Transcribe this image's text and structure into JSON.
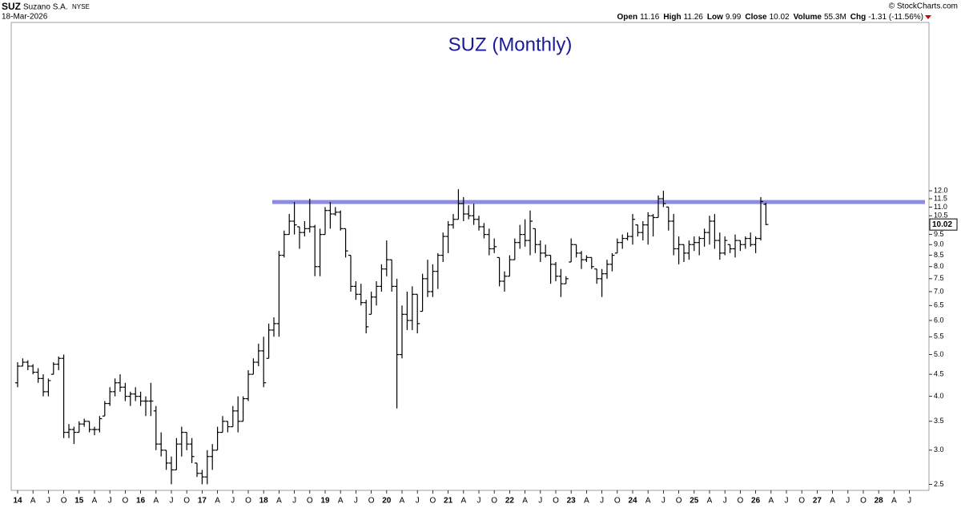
{
  "header": {
    "symbol": "SUZ",
    "name": "Suzano S.A.",
    "exchange": "NYSE",
    "date": "18-Mar-2026",
    "copyright": "© StockCharts.com",
    "quote": [
      {
        "label": "Open",
        "value": "11.16"
      },
      {
        "label": "High",
        "value": "11.26"
      },
      {
        "label": "Low",
        "value": "9.99"
      },
      {
        "label": "Close",
        "value": "10.02"
      },
      {
        "label": "Volume",
        "value": "55.3M"
      },
      {
        "label": "Chg",
        "value": "-1.31 (-11.56%)"
      }
    ]
  },
  "chart_data": {
    "type": "ohlc",
    "title": "SUZ (Monthly)",
    "log_scale": true,
    "color": "#000000",
    "resistance_level": 11.3,
    "resistance_color": "#8c8ce0",
    "ylim": [
      2.42,
      29.5
    ],
    "yticks": [
      2.5,
      {
        "value": 3,
        "label": "3.0"
      },
      3.5,
      {
        "value": 4,
        "label": "4.0"
      },
      4.5,
      {
        "value": 5,
        "label": "5.0"
      },
      5.5,
      {
        "value": 6,
        "label": "6.0"
      },
      6.5,
      {
        "value": 7,
        "label": "7.0"
      },
      7.5,
      {
        "value": 8,
        "label": "8.0"
      },
      8.5,
      {
        "value": 9,
        "label": "9.0"
      },
      9.5,
      10.5,
      {
        "value": 11,
        "label": "11.0"
      },
      11.5,
      {
        "value": 12,
        "label": "12.0"
      }
    ],
    "xtick_labels": [
      "14",
      "A",
      "J",
      "O",
      "15",
      "A",
      "J",
      "O",
      "16",
      "A",
      "J",
      "O",
      "17",
      "A",
      "J",
      "O",
      "18",
      "A",
      "J",
      "O",
      "19",
      "A",
      "J",
      "O",
      "20",
      "A",
      "J",
      "O",
      "21",
      "A",
      "J",
      "O",
      "22",
      "A",
      "J",
      "O",
      "23",
      "A",
      "J",
      "O",
      "24",
      "A",
      "J",
      "O",
      "25",
      "A",
      "J",
      "O",
      "26",
      "A",
      "J",
      "O",
      "27",
      "A",
      "J",
      "O",
      "28",
      "A",
      "J"
    ],
    "open": [
      4.3,
      4.7,
      4.8,
      4.7,
      4.55,
      4.4,
      4.1,
      4.5,
      4.75,
      4.9,
      3.3,
      3.35,
      3.3,
      3.45,
      3.5,
      3.35,
      3.35,
      3.6,
      3.85,
      4.1,
      4.3,
      4.2,
      4.0,
      4.05,
      4.0,
      3.9,
      3.9,
      3.7,
      3.1,
      3.0,
      2.8,
      2.7,
      3.1,
      3.3,
      3.1,
      2.8,
      2.65,
      2.6,
      2.9,
      3.0,
      3.3,
      3.5,
      3.4,
      3.7,
      3.5,
      3.95,
      4.5,
      4.8,
      5.1,
      4.9,
      5.7,
      5.9,
      8.5,
      9.5,
      10.2,
      9.9,
      9.6,
      9.8,
      9.9,
      8.0,
      9.5,
      10.8,
      10.6,
      10.7,
      9.8,
      8.5,
      7.2,
      6.9,
      6.6,
      6.2,
      6.8,
      7.2,
      7.9,
      8.3,
      7.2,
      5.0,
      6.2,
      6.0,
      6.9,
      6.3,
      7.5,
      7.0,
      7.8,
      8.5,
      9.4,
      10.0,
      10.3,
      11.2,
      10.6,
      10.5,
      10.3,
      9.9,
      9.5,
      8.8,
      8.4,
      7.4,
      7.6,
      8.3,
      9.1,
      9.5,
      9.2,
      9.8,
      9.0,
      8.6,
      8.5,
      8.1,
      7.6,
      7.3,
      8.2,
      9.0,
      8.6,
      8.3,
      8.4,
      7.9,
      7.5,
      7.7,
      8.1,
      8.6,
      9.1,
      9.3,
      9.4,
      10.0,
      9.6,
      10.0,
      10.5,
      10.4,
      11.5,
      11.0,
      10.2,
      8.8,
      9.0,
      8.6,
      9.0,
      9.1,
      9.3,
      9.6,
      10.2,
      9.2,
      8.6,
      9.0,
      8.8,
      9.2,
      9.0,
      9.3,
      9.0,
      9.3,
      11.16
    ],
    "high": [
      4.8,
      4.9,
      4.85,
      4.75,
      4.65,
      4.5,
      4.4,
      4.8,
      4.95,
      5.0,
      3.45,
      3.4,
      3.5,
      3.55,
      3.5,
      3.4,
      3.6,
      3.9,
      4.2,
      4.4,
      4.5,
      4.3,
      4.1,
      4.2,
      4.1,
      4.0,
      4.3,
      3.8,
      3.3,
      3.0,
      2.9,
      3.2,
      3.4,
      3.3,
      3.2,
      2.8,
      2.7,
      3.0,
      3.1,
      3.4,
      3.6,
      3.5,
      3.8,
      4.0,
      4.0,
      4.6,
      4.9,
      5.3,
      5.5,
      5.9,
      6.1,
      8.7,
      9.7,
      10.6,
      11.3,
      9.9,
      10.2,
      11.5,
      10.0,
      9.8,
      11.0,
      11.3,
      11.0,
      10.8,
      9.8,
      8.5,
      7.4,
      7.3,
      6.7,
      7.0,
      7.4,
      8.1,
      9.2,
      8.3,
      7.5,
      6.5,
      7.0,
      7.2,
      6.9,
      7.7,
      8.3,
      8.1,
      8.6,
      9.6,
      10.2,
      10.6,
      12.1,
      11.6,
      11.1,
      11.2,
      10.5,
      10.1,
      9.8,
      9.3,
      8.4,
      7.8,
      8.5,
      9.3,
      10.0,
      10.3,
      10.8,
      9.8,
      9.2,
      9.0,
      8.5,
      8.2,
      7.9,
      7.6,
      9.3,
      9.0,
      8.7,
      8.5,
      8.4,
      7.9,
      7.9,
      8.3,
      8.6,
      9.3,
      9.5,
      9.6,
      10.6,
      10.0,
      10.2,
      10.7,
      10.6,
      11.7,
      12.0,
      11.0,
      10.6,
      9.4,
      9.0,
      9.2,
      9.4,
      9.4,
      9.8,
      10.5,
      10.6,
      9.6,
      9.4,
      9.0,
      9.5,
      9.2,
      9.4,
      9.6,
      9.4,
      11.6,
      11.26
    ],
    "low": [
      4.2,
      4.7,
      4.6,
      4.5,
      4.3,
      4.0,
      4.0,
      4.5,
      4.6,
      3.2,
      3.2,
      3.1,
      3.3,
      3.4,
      3.3,
      3.25,
      3.3,
      3.6,
      3.8,
      4.0,
      4.1,
      3.9,
      3.8,
      3.9,
      3.8,
      3.6,
      3.6,
      3.0,
      2.9,
      2.7,
      2.5,
      2.7,
      2.9,
      3.0,
      2.8,
      2.6,
      2.5,
      2.5,
      2.7,
      3.0,
      3.3,
      3.3,
      3.4,
      3.3,
      3.5,
      3.9,
      4.5,
      4.7,
      4.2,
      4.9,
      5.5,
      5.5,
      8.4,
      9.5,
      9.5,
      8.8,
      9.4,
      9.6,
      7.6,
      7.6,
      9.5,
      9.8,
      10.5,
      9.7,
      8.4,
      7.0,
      6.7,
      6.5,
      5.6,
      6.2,
      6.5,
      7.0,
      7.6,
      7.0,
      3.75,
      4.9,
      5.7,
      5.7,
      5.6,
      6.3,
      6.8,
      6.8,
      7.1,
      8.2,
      8.6,
      9.8,
      10.3,
      10.2,
      10.3,
      10.0,
      9.7,
      9.3,
      8.5,
      8.6,
      7.2,
      7.0,
      7.6,
      8.3,
      8.8,
      8.9,
      8.5,
      8.6,
      8.2,
      8.4,
      7.3,
      7.4,
      6.8,
      7.3,
      8.2,
      8.4,
      7.9,
      8.2,
      7.9,
      7.3,
      6.8,
      7.5,
      7.8,
      8.6,
      8.8,
      9.2,
      9.0,
      9.4,
      9.2,
      9.0,
      9.4,
      10.4,
      11.0,
      9.7,
      8.5,
      8.1,
      8.2,
      8.3,
      8.7,
      8.5,
      8.9,
      9.0,
      8.8,
      8.3,
      8.5,
      8.6,
      8.4,
      8.7,
      8.8,
      8.9,
      8.6,
      9.2,
      9.99
    ],
    "close": [
      4.7,
      4.8,
      4.7,
      4.55,
      4.4,
      4.1,
      4.35,
      4.75,
      4.9,
      3.3,
      3.35,
      3.3,
      3.45,
      3.5,
      3.35,
      3.35,
      3.55,
      3.85,
      4.1,
      4.3,
      4.2,
      4.0,
      4.05,
      4.0,
      3.9,
      3.9,
      3.9,
      3.1,
      3.0,
      2.8,
      2.7,
      3.1,
      3.3,
      3.1,
      2.9,
      2.65,
      2.6,
      2.9,
      3.0,
      3.3,
      3.5,
      3.4,
      3.7,
      3.5,
      3.95,
      4.5,
      4.8,
      5.1,
      4.3,
      5.7,
      5.9,
      8.5,
      9.5,
      10.2,
      10.0,
      9.6,
      9.8,
      9.9,
      8.0,
      9.5,
      10.8,
      10.6,
      10.7,
      9.8,
      8.7,
      7.2,
      6.9,
      6.6,
      5.8,
      6.8,
      7.2,
      7.9,
      8.3,
      7.2,
      5.0,
      6.2,
      6.0,
      6.9,
      5.9,
      7.5,
      7.0,
      7.8,
      8.5,
      9.4,
      10.0,
      10.3,
      11.2,
      10.6,
      10.5,
      10.3,
      9.9,
      9.5,
      8.8,
      8.9,
      7.4,
      7.6,
      8.3,
      9.1,
      9.5,
      9.2,
      10.2,
      9.0,
      8.6,
      8.5,
      8.1,
      7.6,
      7.3,
      7.5,
      9.0,
      8.6,
      8.3,
      8.4,
      8.0,
      7.5,
      7.7,
      8.1,
      8.5,
      9.1,
      9.3,
      9.4,
      10.3,
      9.6,
      10.0,
      10.5,
      10.4,
      11.5,
      11.2,
      10.2,
      8.8,
      9.0,
      8.6,
      9.0,
      9.1,
      9.3,
      9.6,
      10.2,
      9.2,
      8.6,
      9.2,
      8.8,
      9.2,
      9.0,
      9.3,
      9.0,
      9.3,
      11.33,
      10.02
    ]
  }
}
